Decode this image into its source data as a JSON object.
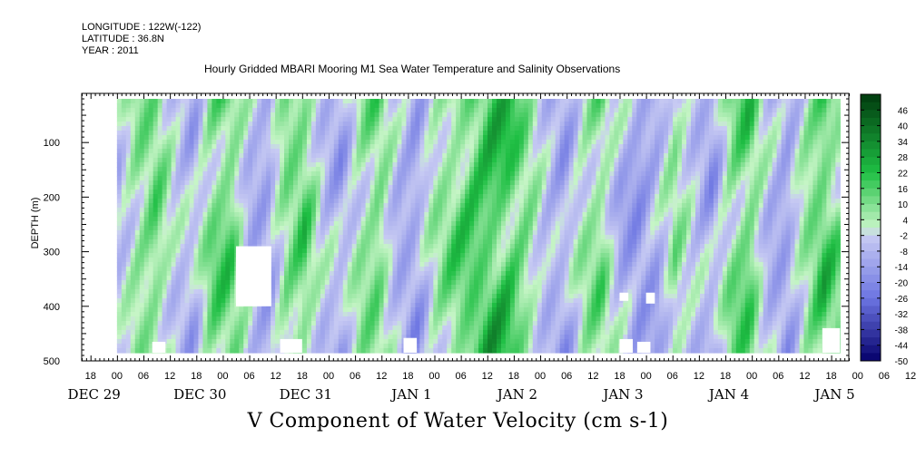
{
  "meta": {
    "longitude": "LONGITUDE : 122W(-122)",
    "latitude": "LATITUDE : 36.8N",
    "year": "YEAR : 2011"
  },
  "chart_data": {
    "type": "heatmap",
    "title": "Hourly Gridded MBARI Mooring M1 Sea Water Temperature and Salinity Observations",
    "xlabel": "V Component of Water Velocity (cm s-1)",
    "ylabel": "DEPTH (m)",
    "y_ticks": [
      100,
      200,
      300,
      400,
      500
    ],
    "y_range": [
      500,
      10
    ],
    "data_depth_range": [
      20,
      485
    ],
    "x_range_hours": [
      -8,
      166
    ],
    "hour_ticks": [
      "18",
      "00",
      "06",
      "12",
      "18",
      "00",
      "06",
      "12",
      "18",
      "00",
      "06",
      "12",
      "18",
      "00",
      "06",
      "12",
      "18",
      "00",
      "06",
      "12",
      "18",
      "00",
      "06",
      "12",
      "18",
      "00",
      "06",
      "12",
      "18",
      "00",
      "06",
      "12"
    ],
    "day_labels": [
      "DEC 29",
      "DEC 30",
      "DEC 31",
      "JAN  1",
      "JAN  2",
      "JAN  3",
      "JAN  4",
      "JAN  5"
    ],
    "colorbar": {
      "labels": [
        "46",
        "40",
        "34",
        "28",
        "22",
        "16",
        "10",
        "4",
        "-2",
        "-8",
        "-14",
        "-20",
        "-26",
        "-32",
        "-38",
        "-44",
        "-50"
      ],
      "range": [
        -50,
        52
      ],
      "step": 3,
      "colors": {
        "high": "#003a0e",
        "mid_high": "#1fbf44",
        "near_zero_pos": "#c6f5c6",
        "near_zero_neg": "#c8cbf3",
        "mid_low": "#6c75e2",
        "low": "#05006a"
      }
    },
    "profile_dominant_values_cm_s": [
      -6,
      8,
      14,
      -4,
      -10,
      12,
      18,
      -8,
      -14,
      10,
      16,
      -6,
      -12,
      6,
      14,
      -10,
      -16,
      4,
      12,
      20,
      24,
      22,
      10,
      -8,
      -14,
      4,
      12,
      -10,
      -18,
      -12,
      8,
      -6,
      -14,
      10,
      18,
      -8,
      -16,
      6,
      20,
      8
    ]
  }
}
